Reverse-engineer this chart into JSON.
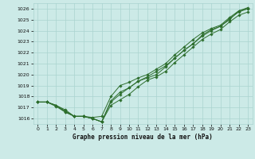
{
  "title": "Graphe pression niveau de la mer (hPa)",
  "background_color": "#cceae7",
  "grid_color": "#aad4d0",
  "line_color": "#2d6e2d",
  "xlim": [
    -0.5,
    23.5
  ],
  "ylim": [
    1015.5,
    1026.5
  ],
  "xticks": [
    0,
    1,
    2,
    3,
    4,
    5,
    6,
    7,
    8,
    9,
    10,
    11,
    12,
    13,
    14,
    15,
    16,
    17,
    18,
    19,
    20,
    21,
    22,
    23
  ],
  "yticks": [
    1016,
    1017,
    1018,
    1019,
    1020,
    1021,
    1022,
    1023,
    1024,
    1025,
    1026
  ],
  "series": [
    [
      1017.5,
      1017.5,
      1017.2,
      1016.6,
      1016.2,
      1016.2,
      1016.0,
      1015.7,
      1017.6,
      1018.4,
      1018.8,
      1019.4,
      1019.7,
      1020.0,
      1020.7,
      1021.5,
      1022.2,
      1022.8,
      1023.6,
      1024.1,
      1024.4,
      1025.0,
      1025.8,
      1026.0
    ],
    [
      1017.5,
      1017.5,
      1017.2,
      1016.8,
      1016.2,
      1016.2,
      1016.1,
      1016.2,
      1018.0,
      1019.0,
      1019.3,
      1019.7,
      1020.0,
      1020.5,
      1021.0,
      1021.8,
      1022.5,
      1023.2,
      1023.8,
      1024.2,
      1024.5,
      1025.2,
      1025.8,
      1026.1
    ],
    [
      1017.5,
      1017.5,
      1017.1,
      1016.6,
      1016.2,
      1016.2,
      1016.0,
      1015.7,
      1017.2,
      1017.7,
      1018.2,
      1018.9,
      1019.5,
      1019.8,
      1020.3,
      1021.1,
      1021.8,
      1022.5,
      1023.2,
      1023.7,
      1024.1,
      1024.8,
      1025.4,
      1025.7
    ],
    [
      1017.5,
      1017.5,
      1017.2,
      1016.7,
      1016.2,
      1016.2,
      1016.0,
      1015.7,
      1017.5,
      1018.2,
      1018.8,
      1019.4,
      1019.8,
      1020.3,
      1020.8,
      1021.5,
      1022.2,
      1022.8,
      1023.5,
      1024.0,
      1024.4,
      1025.1,
      1025.7,
      1026.0
    ]
  ],
  "tick_fontsize": 4.5,
  "xlabel_fontsize": 5.5,
  "marker_size": 1.8,
  "linewidth": 0.7
}
